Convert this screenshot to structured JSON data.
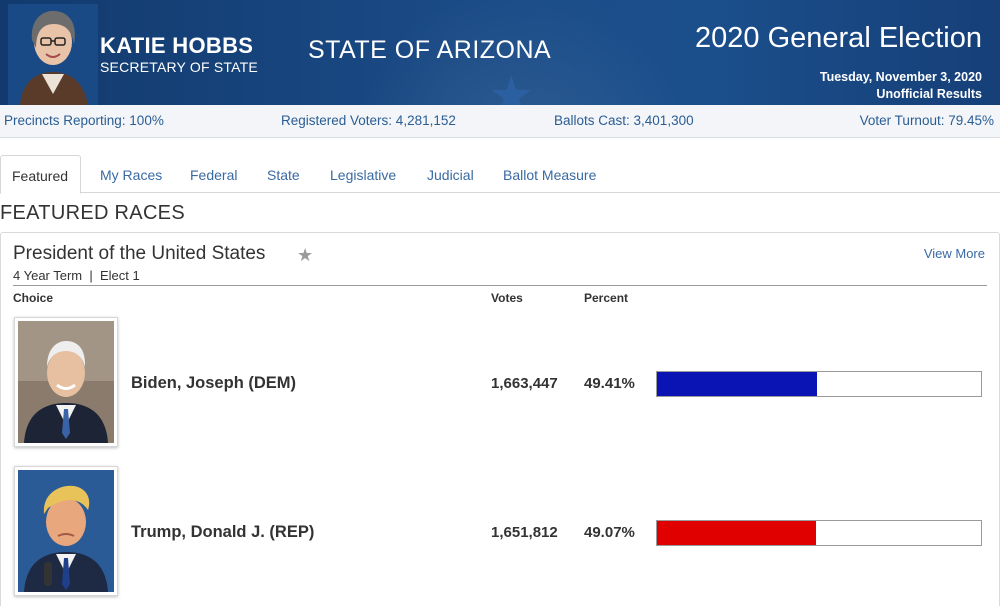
{
  "header": {
    "official_name": "KATIE HOBBS",
    "official_title": "SECRETARY OF STATE",
    "state": "STATE OF ARIZONA",
    "election_title": "2020 General Election",
    "election_date": "Tuesday, November 3, 2020",
    "results_status": "Unofficial Results"
  },
  "stats": {
    "precincts": "Precincts Reporting: 100%",
    "registered": "Registered Voters: 4,281,152",
    "ballots": "Ballots Cast: 3,401,300",
    "turnout": "Voter Turnout: 79.45%"
  },
  "tabs": [
    {
      "label": "Featured",
      "active": true
    },
    {
      "label": "My Races"
    },
    {
      "label": "Federal"
    },
    {
      "label": "State"
    },
    {
      "label": "Legislative"
    },
    {
      "label": "Judicial"
    },
    {
      "label": "Ballot Measure"
    }
  ],
  "section_heading": "FEATURED RACES",
  "race": {
    "title": "President of the United States",
    "favorite_icon": "star-icon",
    "meta": "4 Year Term  |  Elect 1",
    "view_more": "View More",
    "columns": {
      "choice": "Choice",
      "votes": "Votes",
      "percent": "Percent"
    },
    "candidates": [
      {
        "name": "Biden, Joseph (DEM)",
        "votes": "1,663,447",
        "percent": "49.41%",
        "share": 0.4941,
        "color": "#0a14b4"
      },
      {
        "name": "Trump, Donald J. (REP)",
        "votes": "1,651,812",
        "percent": "49.07%",
        "share": 0.4907,
        "color": "#e00000"
      }
    ]
  },
  "colors": {
    "banner": "#1a4a85",
    "link": "#3a6aa3"
  }
}
